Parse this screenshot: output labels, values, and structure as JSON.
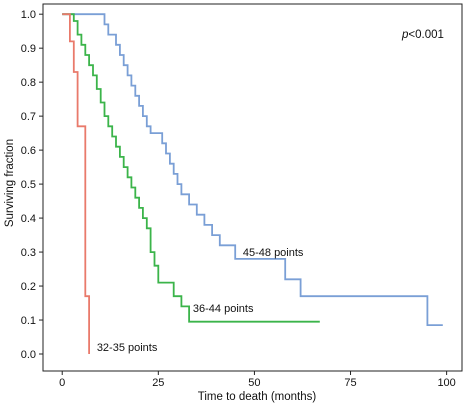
{
  "chart_data": {
    "type": "line",
    "step": true,
    "xlabel": "Time to death (months)",
    "ylabel": "Surviving fraction",
    "xlim": [
      -5,
      104
    ],
    "ylim": [
      -0.05,
      1.03
    ],
    "xticks": [
      0,
      25,
      50,
      75,
      100
    ],
    "yticks": [
      0.0,
      0.1,
      0.2,
      0.3,
      0.4,
      0.5,
      0.6,
      0.7,
      0.8,
      0.9,
      1.0
    ],
    "annotation": {
      "p_symbol": "p",
      "p_rest": "<0.001"
    },
    "series": [
      {
        "name": "45-48 points",
        "color": "#7a9fd6",
        "points": [
          [
            0,
            1.0
          ],
          [
            11,
            1.0
          ],
          [
            11,
            0.97
          ],
          [
            12,
            0.97
          ],
          [
            12,
            0.94
          ],
          [
            14,
            0.94
          ],
          [
            14,
            0.91
          ],
          [
            15,
            0.91
          ],
          [
            15,
            0.88
          ],
          [
            16,
            0.88
          ],
          [
            16,
            0.85
          ],
          [
            17,
            0.85
          ],
          [
            17,
            0.82
          ],
          [
            18,
            0.82
          ],
          [
            18,
            0.79
          ],
          [
            19,
            0.79
          ],
          [
            19,
            0.76
          ],
          [
            20,
            0.76
          ],
          [
            20,
            0.73
          ],
          [
            21,
            0.73
          ],
          [
            21,
            0.7
          ],
          [
            22,
            0.7
          ],
          [
            22,
            0.67
          ],
          [
            23,
            0.67
          ],
          [
            23,
            0.65
          ],
          [
            26,
            0.65
          ],
          [
            26,
            0.62
          ],
          [
            27,
            0.62
          ],
          [
            27,
            0.59
          ],
          [
            28,
            0.59
          ],
          [
            28,
            0.56
          ],
          [
            29,
            0.56
          ],
          [
            29,
            0.53
          ],
          [
            30,
            0.53
          ],
          [
            30,
            0.5
          ],
          [
            31,
            0.5
          ],
          [
            31,
            0.47
          ],
          [
            33,
            0.47
          ],
          [
            33,
            0.44
          ],
          [
            35,
            0.44
          ],
          [
            35,
            0.41
          ],
          [
            37,
            0.41
          ],
          [
            37,
            0.38
          ],
          [
            39,
            0.38
          ],
          [
            39,
            0.35
          ],
          [
            41,
            0.35
          ],
          [
            41,
            0.32
          ],
          [
            45,
            0.32
          ],
          [
            45,
            0.28
          ],
          [
            58,
            0.28
          ],
          [
            58,
            0.22
          ],
          [
            62,
            0.22
          ],
          [
            62,
            0.17
          ],
          [
            95,
            0.17
          ],
          [
            95,
            0.085
          ],
          [
            99,
            0.085
          ]
        ]
      },
      {
        "name": "36-44 points",
        "color": "#3bb44a",
        "points": [
          [
            0,
            1.0
          ],
          [
            3,
            1.0
          ],
          [
            3,
            0.98
          ],
          [
            4,
            0.98
          ],
          [
            4,
            0.94
          ],
          [
            5,
            0.94
          ],
          [
            5,
            0.91
          ],
          [
            6,
            0.91
          ],
          [
            6,
            0.88
          ],
          [
            7,
            0.88
          ],
          [
            7,
            0.85
          ],
          [
            8,
            0.85
          ],
          [
            8,
            0.82
          ],
          [
            9,
            0.82
          ],
          [
            9,
            0.78
          ],
          [
            10,
            0.78
          ],
          [
            10,
            0.74
          ],
          [
            11,
            0.74
          ],
          [
            11,
            0.7
          ],
          [
            12,
            0.7
          ],
          [
            12,
            0.67
          ],
          [
            13,
            0.67
          ],
          [
            13,
            0.64
          ],
          [
            14,
            0.64
          ],
          [
            14,
            0.61
          ],
          [
            15,
            0.61
          ],
          [
            15,
            0.58
          ],
          [
            16,
            0.58
          ],
          [
            16,
            0.55
          ],
          [
            17,
            0.55
          ],
          [
            17,
            0.52
          ],
          [
            18,
            0.52
          ],
          [
            18,
            0.49
          ],
          [
            19,
            0.49
          ],
          [
            19,
            0.46
          ],
          [
            20,
            0.46
          ],
          [
            20,
            0.43
          ],
          [
            21,
            0.43
          ],
          [
            21,
            0.4
          ],
          [
            22,
            0.4
          ],
          [
            22,
            0.37
          ],
          [
            23,
            0.37
          ],
          [
            23,
            0.3
          ],
          [
            24,
            0.3
          ],
          [
            24,
            0.26
          ],
          [
            25,
            0.26
          ],
          [
            25,
            0.21
          ],
          [
            29,
            0.21
          ],
          [
            29,
            0.17
          ],
          [
            31,
            0.17
          ],
          [
            31,
            0.14
          ],
          [
            33,
            0.14
          ],
          [
            33,
            0.095
          ],
          [
            67,
            0.095
          ]
        ]
      },
      {
        "name": "32-35 points",
        "color": "#e97a6b",
        "points": [
          [
            0,
            1.0
          ],
          [
            2,
            1.0
          ],
          [
            2,
            0.92
          ],
          [
            3,
            0.92
          ],
          [
            3,
            0.83
          ],
          [
            4,
            0.83
          ],
          [
            4,
            0.67
          ],
          [
            6,
            0.67
          ],
          [
            6,
            0.17
          ],
          [
            7,
            0.17
          ],
          [
            7,
            0.0
          ]
        ]
      }
    ]
  }
}
